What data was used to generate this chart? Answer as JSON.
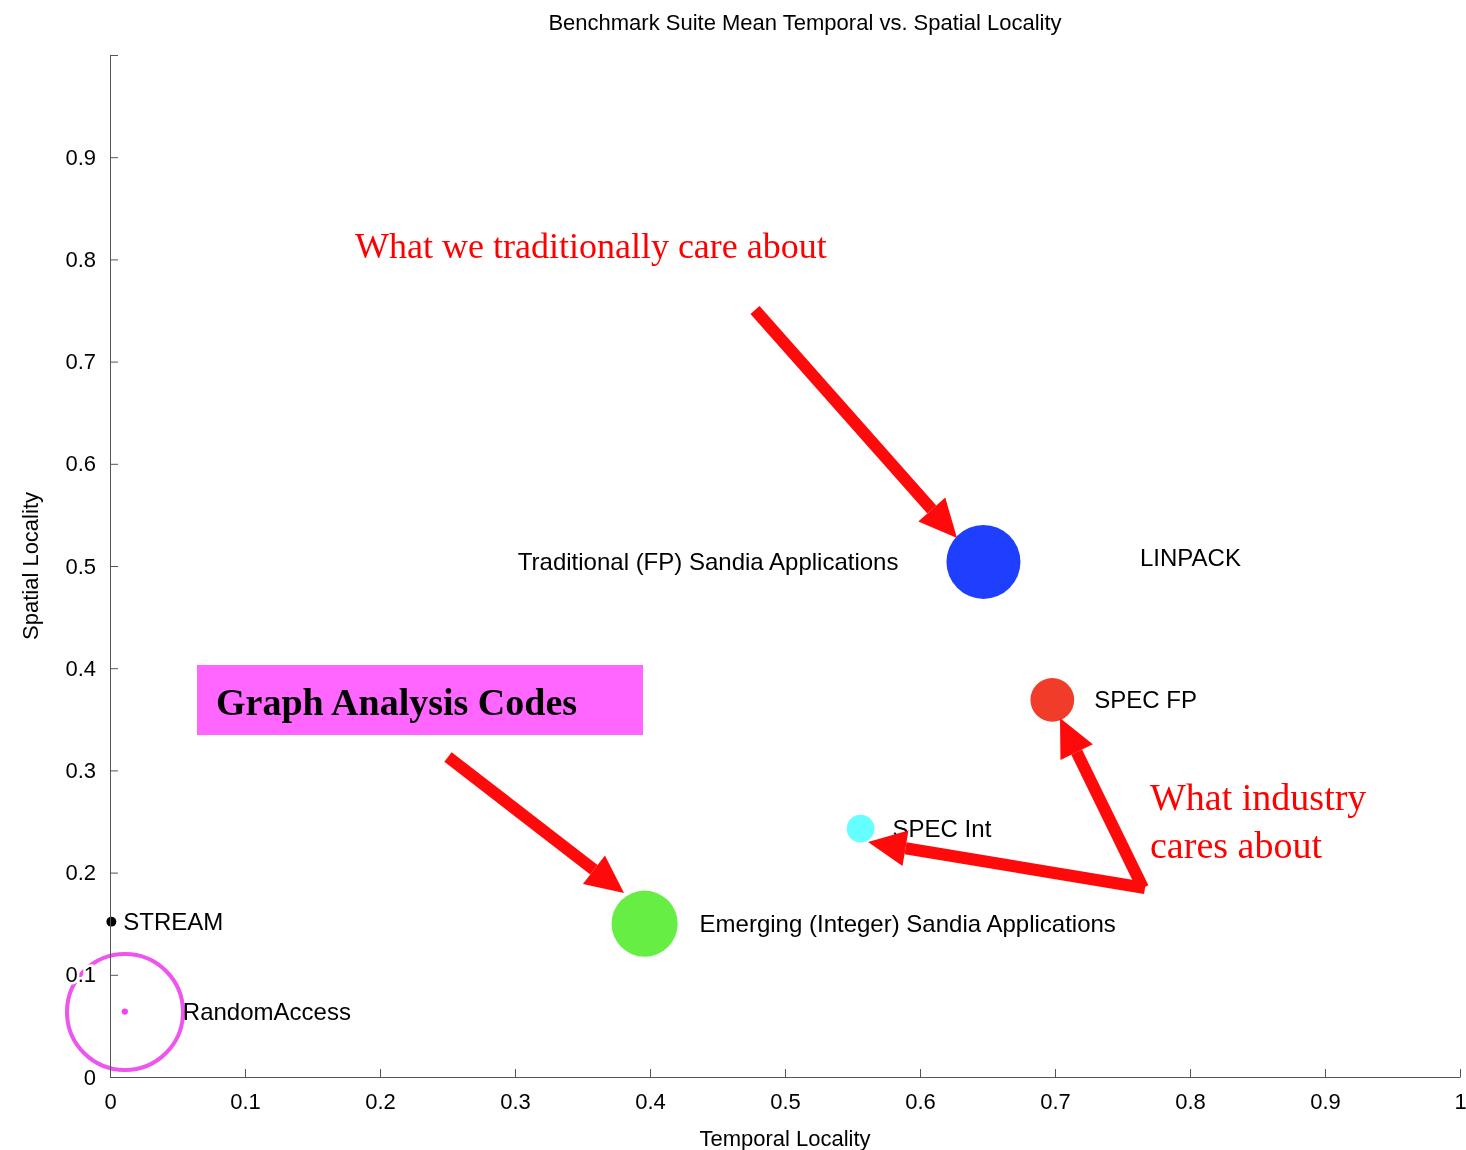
{
  "chart_data": {
    "type": "bubble",
    "title": "Benchmark Suite Mean Temporal vs. Spatial Locality",
    "xlabel": "Temporal Locality",
    "ylabel": "Spatial Locality",
    "xlim": [
      0,
      1
    ],
    "xticks": [
      0,
      0.1,
      0.2,
      0.3,
      0.4,
      0.5,
      0.6,
      0.7,
      0.8,
      0.9,
      1
    ],
    "ylim": [
      0,
      1
    ],
    "yticks": [
      0,
      0.1,
      0.2,
      0.3,
      0.4,
      0.5,
      0.6,
      0.7,
      0.8,
      0.9,
      {
        "value": 1,
        "label": null
      }
    ],
    "grid": false,
    "series": [
      {
        "name": "Traditional (FP) Sandia Applications",
        "color": "#1f3fff",
        "x": [
          0.647
        ],
        "values": [
          0.504
        ],
        "sizes": [
          1
        ]
      },
      {
        "name": "SPEC FP",
        "color": "#f03c28",
        "x": [
          0.698
        ],
        "values": [
          0.369
        ],
        "sizes": [
          0.35
        ]
      },
      {
        "name": "SPEC Int",
        "color": "#66ffff",
        "x": [
          0.556
        ],
        "values": [
          0.243
        ],
        "sizes": [
          0.14
        ]
      },
      {
        "name": "Emerging (Integer) Sandia Applications",
        "color": "#66ee44",
        "x": [
          0.396
        ],
        "values": [
          0.15
        ],
        "sizes": [
          0.8
        ]
      },
      {
        "name": "STREAM",
        "color": "#000000",
        "x": [
          0.001
        ],
        "values": [
          0.152
        ],
        "sizes": [
          0.018
        ]
      },
      {
        "name": "RandomAccess",
        "color": "#ee44ee",
        "x": [
          0.011
        ],
        "values": [
          0.064
        ],
        "sizes": [
          0.007
        ]
      }
    ],
    "annotations": [
      "LINPACK",
      "What we traditionally care about",
      "Graph Analysis Codes",
      "What industry cares about"
    ]
  }
}
